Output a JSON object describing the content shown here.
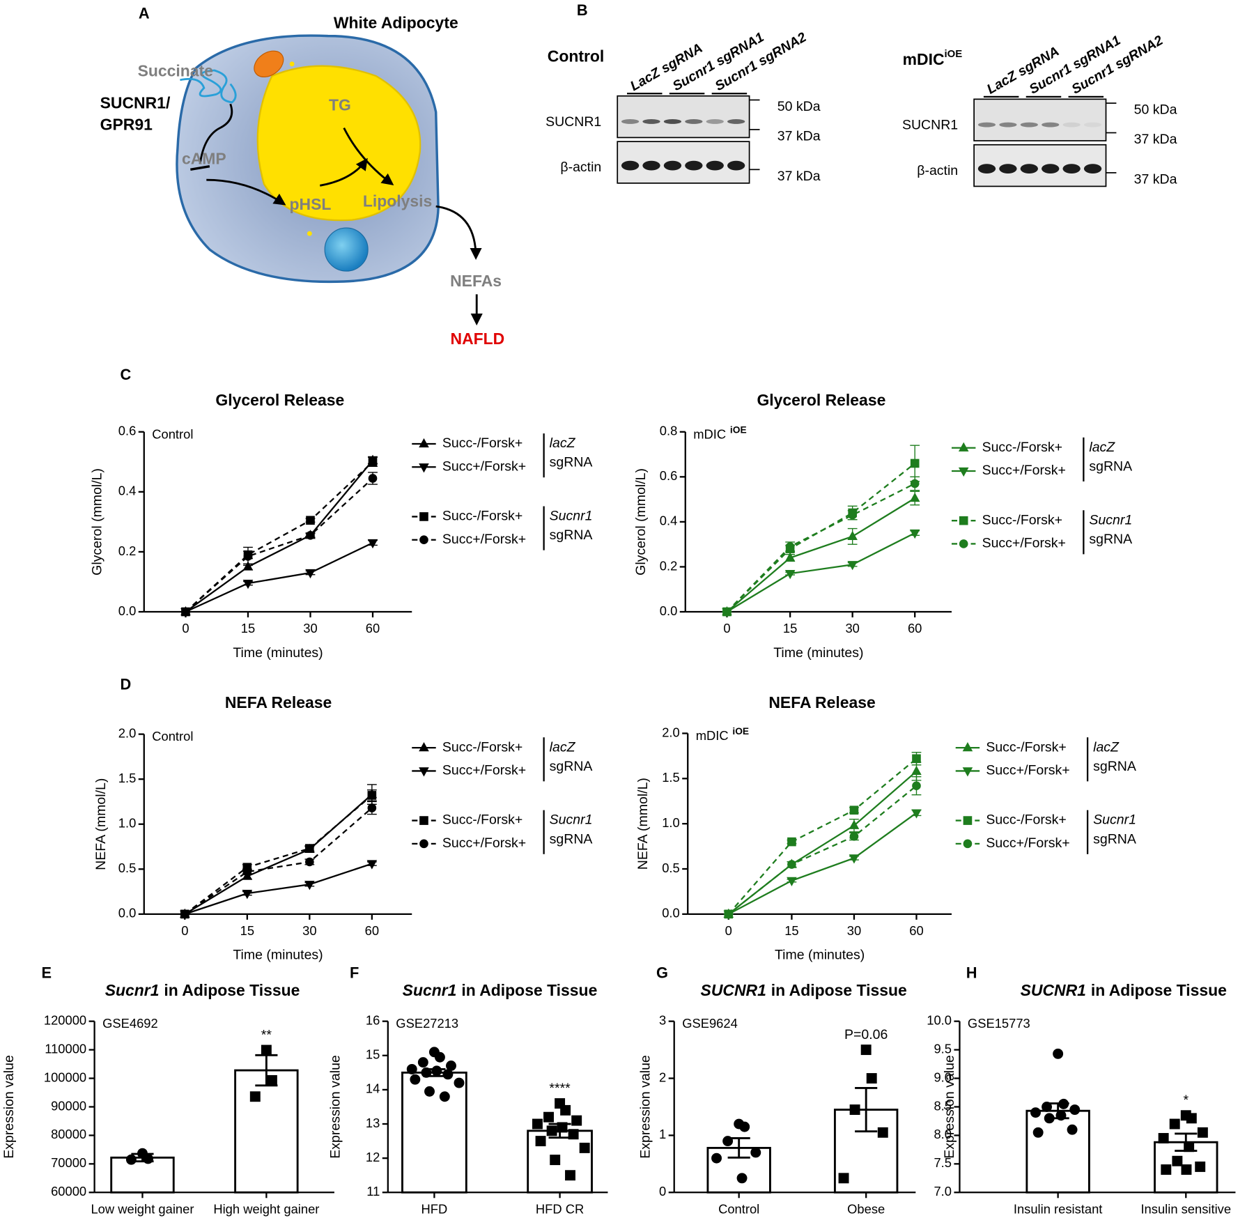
{
  "panel_labels": [
    "A",
    "B",
    "C",
    "D",
    "E",
    "F",
    "G",
    "H"
  ],
  "diagram": {
    "title": "White Adipocyte",
    "succinate": "Succinate",
    "receptor": "SUCNR1/",
    "receptor2": "GPR91",
    "camp": "cAMP",
    "tg": "TG",
    "phsl": "pHSL",
    "lipolysis": "Lipolysis",
    "nefas": "NEFAs",
    "nafld": "NAFLD"
  },
  "blots": [
    {
      "title": "Control",
      "lanes": [
        "LacZ sgRNA",
        "Sucnr1 sgRNA1",
        "Sucnr1 sgRNA2"
      ],
      "rows": [
        "SUCNR1",
        "β-actin"
      ],
      "markers": [
        "50 kDa",
        "37 kDa",
        "37 kDa"
      ]
    },
    {
      "title": "mDIC",
      "title_sup": "iOE",
      "lanes": [
        "LacZ sgRNA",
        "Sucnr1 sgRNA1",
        "Sucnr1 sgRNA2"
      ],
      "rows": [
        "SUCNR1",
        "β-actin"
      ],
      "markers": [
        "50 kDa",
        "37 kDa",
        "37 kDa"
      ]
    }
  ],
  "chart_data": [
    {
      "type": "line",
      "title": "Glycerol Release",
      "annotation": "Control",
      "x_label": "Time (minutes)",
      "y_label": "Glycerol (mmol/L)",
      "categories": [
        "0",
        "15",
        "30",
        "60"
      ],
      "ylim": [
        0,
        0.6
      ],
      "yticks": [
        {
          "value": 0,
          "label": "0.0"
        },
        0.2,
        0.4,
        0.6
      ],
      "series": [
        {
          "name": "Succ-/Forsk+",
          "color": "#000000",
          "marker": "triangle",
          "dashed": false,
          "values": [
            0,
            0.15,
            0.255,
            0.505
          ],
          "errors": [
            0,
            0.01,
            0.008,
            0.012
          ]
        },
        {
          "name": "Succ+/Forsk+",
          "color": "#000000",
          "marker": "triangle-down",
          "dashed": false,
          "values": [
            0,
            0.095,
            0.13,
            0.23
          ],
          "errors": [
            0,
            0.006,
            0.006,
            0.008
          ]
        },
        {
          "name": "Succ-/Forsk+",
          "color": "#000000",
          "marker": "square",
          "dashed": true,
          "values": [
            0,
            0.19,
            0.305,
            0.5
          ],
          "errors": [
            0,
            0.012,
            0.006,
            0.015
          ]
        },
        {
          "name": "Succ+/Forsk+",
          "color": "#000000",
          "marker": "circle",
          "dashed": true,
          "values": [
            0,
            0.185,
            0.255,
            0.445
          ],
          "errors": [
            0,
            0.03,
            0.006,
            0.02
          ]
        }
      ],
      "legend_groups": [
        {
          "label": "lacZ",
          "sublabel": "sgRNA"
        },
        {
          "label": "Sucnr1",
          "sublabel": "sgRNA"
        }
      ]
    },
    {
      "type": "line",
      "title": "Glycerol Release",
      "annotation": "mDIC",
      "annotation_sup": "iOE",
      "x_label": "Time (minutes)",
      "y_label": "Glycerol (mmol/L)",
      "categories": [
        "0",
        "15",
        "30",
        "60"
      ],
      "ylim": [
        0,
        0.8
      ],
      "yticks": [
        {
          "value": 0,
          "label": "0.0"
        },
        0.2,
        0.4,
        0.6,
        0.8
      ],
      "series": [
        {
          "name": "Succ-/Forsk+",
          "color": "#1e7d1e",
          "marker": "triangle",
          "dashed": false,
          "values": [
            0,
            0.24,
            0.335,
            0.505
          ],
          "errors": [
            0,
            0.015,
            0.035,
            0.03
          ]
        },
        {
          "name": "Succ+/Forsk+",
          "color": "#1e7d1e",
          "marker": "triangle-down",
          "dashed": false,
          "values": [
            0,
            0.17,
            0.21,
            0.35
          ],
          "errors": [
            0,
            0.006,
            0.008,
            0.01
          ]
        },
        {
          "name": "Succ-/Forsk+",
          "color": "#1e7d1e",
          "marker": "square",
          "dashed": true,
          "values": [
            0,
            0.28,
            0.44,
            0.66
          ],
          "errors": [
            0,
            0.015,
            0.03,
            0.08
          ]
        },
        {
          "name": "Succ+/Forsk+",
          "color": "#1e7d1e",
          "marker": "circle",
          "dashed": true,
          "values": [
            0,
            0.29,
            0.43,
            0.57
          ],
          "errors": [
            0,
            0.02,
            0.02,
            0.03
          ]
        }
      ],
      "legend_groups": [
        {
          "label": "lacZ",
          "sublabel": "sgRNA"
        },
        {
          "label": "Sucnr1",
          "sublabel": "sgRNA"
        }
      ]
    },
    {
      "type": "line",
      "title": "NEFA Release",
      "annotation": "Control",
      "x_label": "Time (minutes)",
      "y_label": "NEFA (mmol/L)",
      "categories": [
        "0",
        "15",
        "30",
        "60"
      ],
      "ylim": [
        0,
        2
      ],
      "yticks": [
        {
          "value": 0,
          "label": "0.0"
        },
        0.5,
        {
          "value": 1,
          "label": "1.0"
        },
        1.5,
        {
          "value": 2,
          "label": "2.0"
        }
      ],
      "series": [
        {
          "name": "Succ-/Forsk+",
          "color": "#000000",
          "marker": "triangle",
          "dashed": false,
          "values": [
            0,
            0.42,
            0.72,
            1.33
          ],
          "errors": [
            0,
            0.03,
            0.03,
            0.11
          ]
        },
        {
          "name": "Succ+/Forsk+",
          "color": "#000000",
          "marker": "triangle-down",
          "dashed": false,
          "values": [
            0,
            0.23,
            0.33,
            0.56
          ],
          "errors": [
            0,
            0.02,
            0.02,
            0.02
          ]
        },
        {
          "name": "Succ-/Forsk+",
          "color": "#000000",
          "marker": "square",
          "dashed": true,
          "values": [
            0,
            0.52,
            0.73,
            1.32
          ],
          "errors": [
            0,
            0.03,
            0.03,
            0.06
          ]
        },
        {
          "name": "Succ+/Forsk+",
          "color": "#000000",
          "marker": "circle",
          "dashed": true,
          "values": [
            0,
            0.47,
            0.58,
            1.18
          ],
          "errors": [
            0,
            0.03,
            0.03,
            0.07
          ]
        }
      ],
      "legend_groups": [
        {
          "label": "lacZ",
          "sublabel": "sgRNA"
        },
        {
          "label": "Sucnr1",
          "sublabel": "sgRNA"
        }
      ]
    },
    {
      "type": "line",
      "title": "NEFA Release",
      "annotation": "mDIC",
      "annotation_sup": "iOE",
      "x_label": "Time (minutes)",
      "y_label": "NEFA (mmol/L)",
      "categories": [
        "0",
        "15",
        "30",
        "60"
      ],
      "ylim": [
        0,
        2
      ],
      "yticks": [
        {
          "value": 0,
          "label": "0.0"
        },
        0.5,
        {
          "value": 1,
          "label": "1.0"
        },
        1.5,
        {
          "value": 2,
          "label": "2.0"
        }
      ],
      "series": [
        {
          "name": "Succ-/Forsk+",
          "color": "#1e7d1e",
          "marker": "triangle",
          "dashed": false,
          "values": [
            0,
            0.55,
            0.98,
            1.58
          ],
          "errors": [
            0,
            0.03,
            0.07,
            0.1
          ]
        },
        {
          "name": "Succ+/Forsk+",
          "color": "#1e7d1e",
          "marker": "triangle-down",
          "dashed": false,
          "values": [
            0,
            0.37,
            0.62,
            1.12
          ],
          "errors": [
            0,
            0.015,
            0.02,
            0.03
          ]
        },
        {
          "name": "Succ-/Forsk+",
          "color": "#1e7d1e",
          "marker": "square",
          "dashed": true,
          "values": [
            0,
            0.8,
            1.15,
            1.72
          ],
          "errors": [
            0,
            0.02,
            0.03,
            0.07
          ]
        },
        {
          "name": "Succ+/Forsk+",
          "color": "#1e7d1e",
          "marker": "circle",
          "dashed": true,
          "values": [
            0,
            0.55,
            0.86,
            1.42
          ],
          "errors": [
            0,
            0.03,
            0.04,
            0.1
          ]
        }
      ],
      "legend_groups": [
        {
          "label": "lacZ",
          "sublabel": "sgRNA"
        },
        {
          "label": "Sucnr1",
          "sublabel": "sgRNA"
        }
      ]
    },
    {
      "type": "bar",
      "title_gene": "Sucnr1",
      "title": "in Adipose Tissue",
      "annotation": "GSE4692",
      "y_label": "Expression value",
      "categories": [
        "Low weight gainer",
        "High weight gainer"
      ],
      "values": [
        72200,
        102800
      ],
      "errors": [
        1300,
        5300
      ],
      "points": [
        [
          73700,
          71800,
          71500
        ],
        [
          109900,
          99300,
          93600
        ]
      ],
      "markers": [
        "circle",
        "square"
      ],
      "significance": [
        null,
        "**"
      ],
      "ylim": [
        60000,
        120000
      ],
      "yticks": [
        60000,
        70000,
        80000,
        90000,
        100000,
        110000,
        120000
      ]
    },
    {
      "type": "bar",
      "title_gene": "Sucnr1",
      "title": "in Adipose Tissue",
      "annotation": "GSE27213",
      "y_label": "Expression value",
      "categories": [
        "HFD",
        "HFD CR"
      ],
      "values": [
        14.5,
        12.8
      ],
      "errors": [
        0.1,
        0.2
      ],
      "points": [
        [
          15.1,
          14.95,
          14.8,
          14.7,
          14.6,
          14.55,
          14.5,
          14.45,
          14.3,
          14.2,
          13.95,
          13.8
        ],
        [
          13.6,
          13.4,
          13.2,
          13.1,
          13.0,
          12.9,
          12.8,
          12.7,
          12.5,
          12.3,
          11.95,
          11.5
        ]
      ],
      "markers": [
        "circle",
        "square"
      ],
      "significance": [
        null,
        "****"
      ],
      "ylim": [
        11,
        16
      ],
      "yticks": [
        11,
        12,
        13,
        14,
        15,
        16
      ]
    },
    {
      "type": "bar",
      "title_gene": "SUCNR1",
      "title": "in Adipose Tissue",
      "annotation": "GSE9624",
      "y_label": "Expression value",
      "categories": [
        "Control",
        "Obese"
      ],
      "values": [
        0.78,
        1.45
      ],
      "errors": [
        0.17,
        0.38
      ],
      "points": [
        [
          1.2,
          1.15,
          0.9,
          0.7,
          0.6,
          0.25
        ],
        [
          2.5,
          2.0,
          1.45,
          1.05,
          0.25
        ]
      ],
      "markers": [
        "circle",
        "square"
      ],
      "significance": [
        null,
        "P=0.06"
      ],
      "ylim": [
        0,
        3
      ],
      "yticks": [
        0,
        1,
        2,
        3
      ]
    },
    {
      "type": "bar",
      "title_gene": "SUCNR1",
      "title": "in Adipose Tissue",
      "annotation": "GSE15773",
      "y_label": "Expression value",
      "categories": [
        "Insulin resistant",
        "Insulin sensitive"
      ],
      "values": [
        8.43,
        7.88
      ],
      "errors": [
        0.13,
        0.15
      ],
      "points": [
        [
          9.43,
          8.55,
          8.5,
          8.45,
          8.4,
          8.35,
          8.3,
          8.1,
          8.05
        ],
        [
          8.35,
          8.3,
          8.2,
          8.05,
          7.95,
          7.8,
          7.55,
          7.45,
          7.4,
          7.4
        ]
      ],
      "markers": [
        "circle",
        "square"
      ],
      "significance": [
        null,
        "*"
      ],
      "ylim": [
        7,
        10
      ],
      "yticks": [
        {
          "value": 7,
          "label": "7.0"
        },
        7.5,
        {
          "value": 8,
          "label": "8.0"
        },
        8.5,
        {
          "value": 9,
          "label": "9.0"
        },
        9.5,
        {
          "value": 10,
          "label": "10.0"
        }
      ]
    }
  ]
}
